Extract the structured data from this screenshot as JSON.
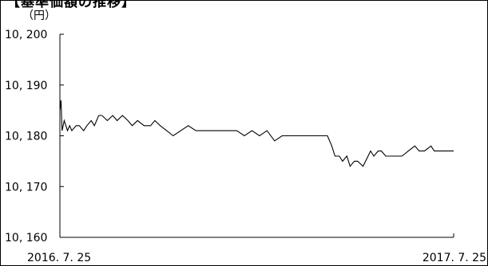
{
  "header": {
    "title_fragment": "【基準価額の推移】"
  },
  "chart_data": {
    "type": "line",
    "title": "【基準価額の推移】",
    "ylabel": "（円）",
    "xlabel": "",
    "ylim": [
      10160,
      10200
    ],
    "yticks": [
      10160,
      10170,
      10180,
      10190,
      10200
    ],
    "ytick_labels": [
      "10, 160",
      "10, 170",
      "10, 180",
      "10, 190",
      "10, 200"
    ],
    "xrange": [
      "2016-07-25",
      "2017-07-25"
    ],
    "xtick_labels": [
      "2016. 7. 25",
      "2017. 7. 25"
    ],
    "grid": false,
    "line_color": "#000000",
    "series": [
      {
        "x": [
          "2016-07-25",
          "2016-07-26",
          "2016-07-27",
          "2016-07-28",
          "2016-07-29",
          "2016-08-01",
          "2016-08-03",
          "2016-08-05",
          "2016-08-09",
          "2016-08-12",
          "2016-08-16",
          "2016-08-19",
          "2016-08-23",
          "2016-08-26",
          "2016-08-30",
          "2016-09-02",
          "2016-09-07",
          "2016-09-12",
          "2016-09-16",
          "2016-09-21",
          "2016-09-26",
          "2016-09-30",
          "2016-10-05",
          "2016-10-11",
          "2016-10-17",
          "2016-10-21",
          "2016-10-26",
          "2016-11-01",
          "2016-11-07",
          "2016-11-14",
          "2016-11-21",
          "2016-11-28",
          "2016-12-05",
          "2016-12-12",
          "2016-12-19",
          "2016-12-26",
          "2017-01-05",
          "2017-01-12",
          "2017-01-19",
          "2017-01-26",
          "2017-02-02",
          "2017-02-09",
          "2017-02-16",
          "2017-02-23",
          "2017-03-02",
          "2017-03-09",
          "2017-03-16",
          "2017-03-23",
          "2017-03-30",
          "2017-04-03",
          "2017-04-06",
          "2017-04-10",
          "2017-04-13",
          "2017-04-17",
          "2017-04-20",
          "2017-04-24",
          "2017-04-27",
          "2017-05-02",
          "2017-05-09",
          "2017-05-12",
          "2017-05-16",
          "2017-05-19",
          "2017-05-23",
          "2017-05-26",
          "2017-06-01",
          "2017-06-07",
          "2017-06-13",
          "2017-06-19",
          "2017-06-23",
          "2017-06-28",
          "2017-07-04",
          "2017-07-07",
          "2017-07-12",
          "2017-07-18",
          "2017-07-25"
        ],
        "values": [
          10185,
          10187,
          10181,
          10182,
          10183,
          10181,
          10182,
          10181,
          10182,
          10182,
          10181,
          10182,
          10183,
          10182,
          10184,
          10184,
          10183,
          10184,
          10183,
          10184,
          10183,
          10182,
          10183,
          10182,
          10182,
          10183,
          10182,
          10181,
          10180,
          10181,
          10182,
          10181,
          10181,
          10181,
          10181,
          10181,
          10181,
          10180,
          10181,
          10180,
          10181,
          10179,
          10180,
          10180,
          10180,
          10180,
          10180,
          10180,
          10180,
          10178,
          10176,
          10176,
          10175,
          10176,
          10174,
          10175,
          10175,
          10174,
          10177,
          10176,
          10177,
          10177,
          10176,
          10176,
          10176,
          10176,
          10177,
          10178,
          10177,
          10177,
          10178,
          10177,
          10177,
          10177,
          10177
        ]
      }
    ]
  }
}
